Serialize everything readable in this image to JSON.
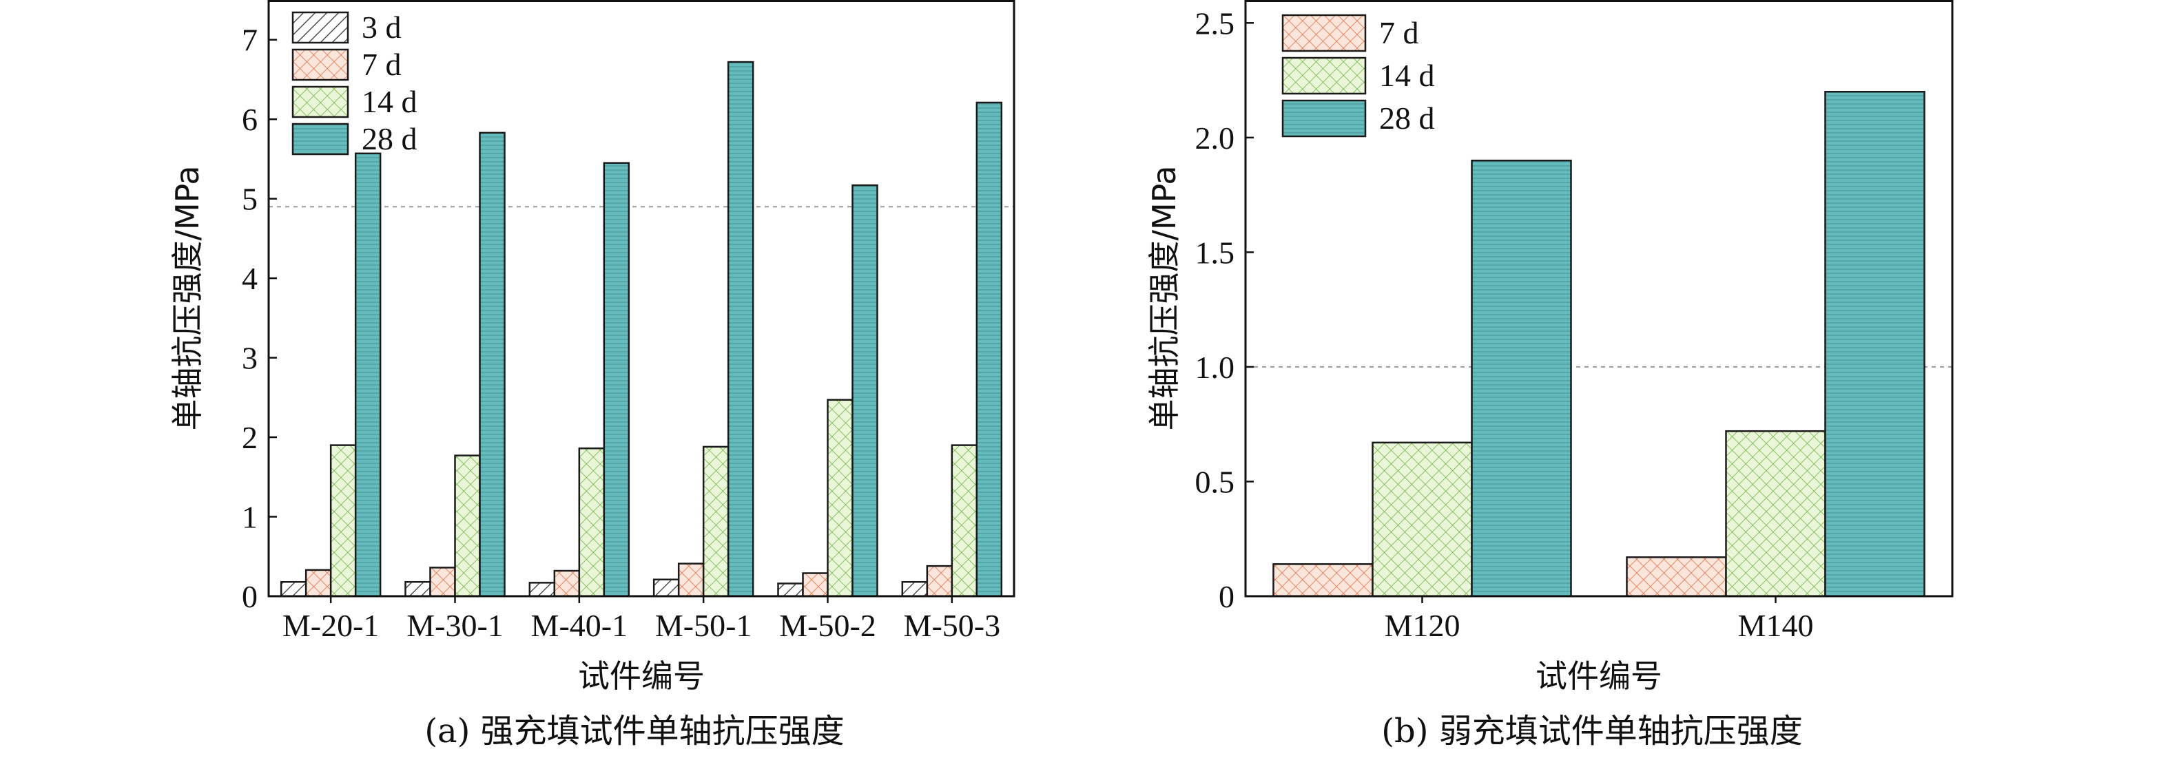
{
  "chart_data": [
    {
      "type": "bar",
      "panel": "a",
      "caption": "(a) 强充填试件单轴抗压强度",
      "xlabel": "试件编号",
      "ylabel": "单轴抗压强度/MPa",
      "ylim": [
        0,
        7.5
      ],
      "yticks": [
        0,
        1,
        2,
        3,
        4,
        5,
        6,
        7
      ],
      "yticklabels": [
        "0",
        "1",
        "2",
        "3",
        "4",
        "5",
        "6",
        "7"
      ],
      "reference_line": 4.9,
      "legend_position": "top-left",
      "categories": [
        "M-20-1",
        "M-30-1",
        "M-40-1",
        "M-50-1",
        "M-50-2",
        "M-50-3"
      ],
      "series": [
        {
          "name": "3 d",
          "values": [
            0.18,
            0.18,
            0.17,
            0.21,
            0.16,
            0.18
          ],
          "fill": "#ffffff",
          "pattern": "diag",
          "pattern_color": "#333333"
        },
        {
          "name": "7 d",
          "values": [
            0.33,
            0.36,
            0.32,
            0.41,
            0.29,
            0.38
          ],
          "fill": "#fbe6dc",
          "pattern": "cross",
          "pattern_color": "#e0704a"
        },
        {
          "name": "14 d",
          "values": [
            1.9,
            1.77,
            1.86,
            1.88,
            2.47,
            1.9
          ],
          "fill": "#eaf6d8",
          "pattern": "cross",
          "pattern_color": "#74b24a"
        },
        {
          "name": "28 d",
          "values": [
            5.57,
            5.83,
            5.45,
            6.72,
            5.17,
            6.21
          ],
          "fill": "#66bcbc",
          "pattern": "horiz",
          "pattern_color": "#4f9e9e"
        }
      ]
    },
    {
      "type": "bar",
      "panel": "b",
      "caption": "(b) 弱充填试件单轴抗压强度",
      "xlabel": "试件编号",
      "ylabel": "单轴抗压强度/MPa",
      "ylim": [
        0,
        2.6
      ],
      "yticks": [
        0,
        0.5,
        1.0,
        1.5,
        2.0,
        2.5
      ],
      "yticklabels": [
        "0",
        "0.5",
        "1.0",
        "1.5",
        "2.0",
        "2.5"
      ],
      "reference_line": 1.0,
      "legend_position": "top-left",
      "categories": [
        "M120",
        "M140"
      ],
      "series": [
        {
          "name": "7 d",
          "values": [
            0.14,
            0.17
          ],
          "fill": "#fbe6dc",
          "pattern": "cross",
          "pattern_color": "#e0704a"
        },
        {
          "name": "14 d",
          "values": [
            0.67,
            0.72
          ],
          "fill": "#eaf6d8",
          "pattern": "cross",
          "pattern_color": "#74b24a"
        },
        {
          "name": "28 d",
          "values": [
            1.9,
            2.2
          ],
          "fill": "#66bcbc",
          "pattern": "horiz",
          "pattern_color": "#4f9e9e"
        }
      ]
    }
  ]
}
